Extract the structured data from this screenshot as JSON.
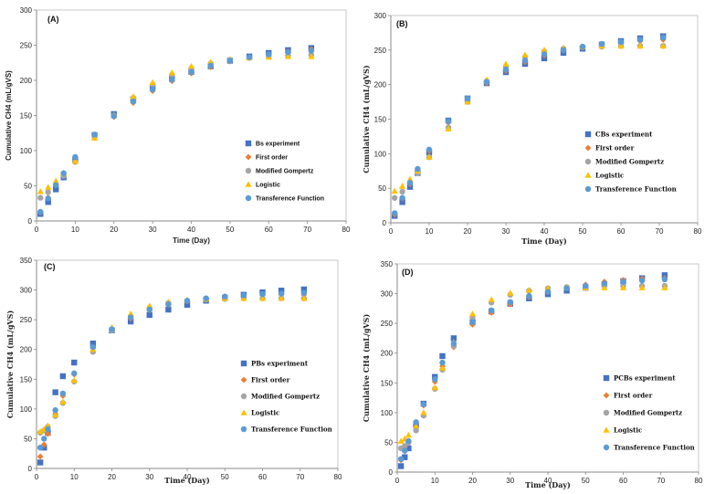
{
  "colors": {
    "experiment": "#4472C4",
    "first_order": "#ED7D31",
    "modified_gompertz": "#A5A5A5",
    "logistic": "#FFC000",
    "transference": "#5B9BD5",
    "axis": "#888888"
  },
  "chart_data": [
    {
      "type": "scatter",
      "panel_label": "(A)",
      "xlabel": "Time  (Day)",
      "ylabel": "Cumulative CH4 (mL/gVS)",
      "xlim": [
        0,
        80
      ],
      "ylim": [
        0,
        300
      ],
      "xticks": [
        0,
        10,
        20,
        30,
        40,
        50,
        60,
        70,
        80
      ],
      "yticks": [
        0,
        50,
        100,
        150,
        200,
        250,
        300
      ],
      "legend_position": "right",
      "x": [
        1,
        3,
        5,
        7,
        10,
        15,
        20,
        25,
        30,
        35,
        40,
        45,
        50,
        55,
        60,
        65,
        71
      ],
      "series": [
        {
          "name": "Bs experiment",
          "marker": "square",
          "values": [
            10,
            27,
            45,
            62,
            87,
            122,
            152,
            173,
            190,
            202,
            212,
            220,
            228,
            234,
            239,
            243,
            246
          ]
        },
        {
          "name": "First order",
          "marker": "diamond",
          "values": [
            12,
            33,
            52,
            68,
            90,
            122,
            148,
            168,
            185,
            199,
            210,
            219,
            227,
            233,
            237,
            241,
            244
          ]
        },
        {
          "name": "Modified Gompertz",
          "marker": "circle",
          "values": [
            33,
            41,
            52,
            64,
            84,
            120,
            150,
            175,
            194,
            208,
            217,
            224,
            229,
            232,
            234,
            235,
            236
          ]
        },
        {
          "name": "Logistic",
          "marker": "triangle",
          "values": [
            42,
            48,
            57,
            68,
            85,
            118,
            150,
            177,
            197,
            211,
            220,
            226,
            230,
            232,
            233,
            234,
            234
          ]
        },
        {
          "name": "Transference Function",
          "marker": "circle",
          "values": [
            13,
            32,
            51,
            68,
            91,
            123,
            149,
            170,
            187,
            201,
            212,
            221,
            228,
            233,
            237,
            240,
            242
          ]
        }
      ]
    },
    {
      "type": "scatter",
      "panel_label": "(B)",
      "xlabel": "Time (Day)",
      "ylabel": "Cumulative CH4 (mL/gVS)",
      "xlim": [
        0,
        80
      ],
      "ylim": [
        0,
        300
      ],
      "xticks": [
        0,
        10,
        20,
        30,
        40,
        50,
        60,
        70,
        80
      ],
      "yticks": [
        0,
        50,
        100,
        150,
        200,
        250,
        300
      ],
      "legend_position": "right",
      "x": [
        1,
        3,
        5,
        7,
        10,
        15,
        20,
        25,
        30,
        35,
        40,
        45,
        50,
        55,
        60,
        65,
        71
      ],
      "series": [
        {
          "name": "CBs experiment",
          "marker": "square",
          "values": [
            10,
            30,
            52,
            72,
            102,
            148,
            180,
            202,
            218,
            230,
            238,
            246,
            252,
            258,
            263,
            267,
            270
          ]
        },
        {
          "name": "First order",
          "marker": "diamond",
          "values": [
            12,
            35,
            56,
            76,
            104,
            145,
            178,
            202,
            220,
            233,
            242,
            249,
            254,
            258,
            261,
            263,
            265
          ]
        },
        {
          "name": "Modified Gompertz",
          "marker": "circle",
          "values": [
            36,
            45,
            58,
            72,
            95,
            138,
            175,
            205,
            226,
            240,
            248,
            252,
            254,
            255,
            256,
            256,
            256
          ]
        },
        {
          "name": "Logistic",
          "marker": "triangle",
          "values": [
            46,
            53,
            63,
            75,
            95,
            136,
            175,
            207,
            230,
            243,
            250,
            253,
            255,
            256,
            256,
            256,
            256
          ]
        },
        {
          "name": "Transference Function",
          "marker": "circle",
          "values": [
            14,
            36,
            58,
            78,
            106,
            147,
            180,
            204,
            222,
            235,
            244,
            250,
            255,
            259,
            262,
            265,
            268
          ]
        }
      ]
    },
    {
      "type": "scatter",
      "panel_label": "(C)",
      "xlabel": "Time (Day)",
      "ylabel": "Cumulative CH4 (mL/gVS)",
      "xlim": [
        0,
        80
      ],
      "ylim": [
        0,
        350
      ],
      "xticks": [
        0,
        10,
        20,
        30,
        40,
        50,
        60,
        70,
        80
      ],
      "yticks": [
        0,
        50,
        100,
        150,
        200,
        250,
        300,
        350
      ],
      "legend_position": "right",
      "x": [
        1,
        2,
        3,
        5,
        7,
        10,
        15,
        20,
        25,
        30,
        35,
        40,
        45,
        50,
        55,
        60,
        65,
        71
      ],
      "series": [
        {
          "name": "PBs experiment",
          "marker": "square",
          "values": [
            10,
            35,
            60,
            128,
            155,
            178,
            210,
            232,
            247,
            258,
            267,
            275,
            282,
            287,
            292,
            296,
            299,
            301
          ]
        },
        {
          "name": "First order",
          "marker": "diamond",
          "values": [
            20,
            40,
            58,
            92,
            122,
            158,
            202,
            232,
            252,
            266,
            275,
            281,
            285,
            288,
            290,
            291,
            292,
            292
          ]
        },
        {
          "name": "Modified Gompertz",
          "marker": "circle",
          "values": [
            60,
            64,
            70,
            88,
            110,
            146,
            196,
            232,
            256,
            270,
            278,
            282,
            284,
            285,
            286,
            286,
            286,
            286
          ]
        },
        {
          "name": "Logistic",
          "marker": "triangle",
          "values": [
            62,
            66,
            72,
            90,
            112,
            148,
            200,
            237,
            260,
            273,
            280,
            283,
            285,
            286,
            286,
            286,
            286,
            286
          ]
        },
        {
          "name": "Transference Function",
          "marker": "circle",
          "values": [
            35,
            50,
            66,
            98,
            126,
            160,
            204,
            234,
            254,
            267,
            276,
            282,
            286,
            289,
            291,
            293,
            294,
            295
          ]
        }
      ]
    },
    {
      "type": "scatter",
      "panel_label": "(D)",
      "xlabel": "Time (Day)",
      "ylabel": "Cumulative CH4 (mL/gVS)",
      "xlim": [
        0,
        80
      ],
      "ylim": [
        0,
        350
      ],
      "xticks": [
        0,
        10,
        20,
        30,
        40,
        50,
        60,
        70,
        80
      ],
      "yticks": [
        0,
        50,
        100,
        150,
        200,
        250,
        300,
        350
      ],
      "legend_position": "right",
      "x": [
        1,
        2,
        3,
        5,
        7,
        10,
        12,
        15,
        20,
        25,
        30,
        35,
        40,
        45,
        50,
        55,
        60,
        65,
        71
      ],
      "series": [
        {
          "name": "PCBs experiment",
          "marker": "square",
          "values": [
            10,
            25,
            40,
            78,
            115,
            160,
            195,
            225,
            252,
            270,
            283,
            292,
            299,
            305,
            310,
            316,
            321,
            326,
            331
          ]
        },
        {
          "name": "First order",
          "marker": "diamond",
          "values": [
            20,
            35,
            50,
            82,
            112,
            152,
            178,
            210,
            248,
            268,
            282,
            294,
            303,
            310,
            315,
            320,
            323,
            325,
            326
          ]
        },
        {
          "name": "Modified Gompertz",
          "marker": "circle",
          "values": [
            40,
            44,
            50,
            70,
            95,
            140,
            172,
            212,
            260,
            285,
            298,
            305,
            309,
            311,
            312,
            313,
            313,
            313,
            313
          ]
        },
        {
          "name": "Logistic",
          "marker": "triangle",
          "values": [
            52,
            56,
            62,
            78,
            100,
            142,
            175,
            218,
            266,
            290,
            301,
            306,
            309,
            310,
            310,
            310,
            310,
            310,
            310
          ]
        },
        {
          "name": "Transference Function",
          "marker": "circle",
          "values": [
            22,
            36,
            52,
            84,
            114,
            156,
            184,
            216,
            252,
            272,
            286,
            296,
            303,
            309,
            313,
            317,
            320,
            322,
            324
          ]
        }
      ]
    }
  ]
}
